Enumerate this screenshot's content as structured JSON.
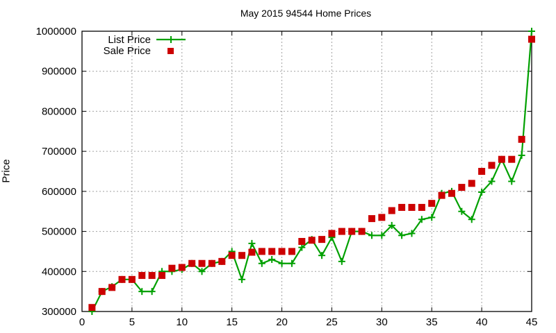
{
  "chart_data": {
    "type": "line",
    "title": "May 2015 94544 Home Prices",
    "xlabel": "",
    "ylabel": "Price",
    "xlim": [
      0,
      45
    ],
    "ylim": [
      300000,
      1000000
    ],
    "xticks": [
      0,
      5,
      10,
      15,
      20,
      25,
      30,
      35,
      40,
      45
    ],
    "yticks": [
      300000,
      400000,
      500000,
      600000,
      700000,
      800000,
      900000,
      1000000
    ],
    "grid": true,
    "legend_position": "top-left",
    "x": [
      1,
      2,
      3,
      4,
      5,
      6,
      7,
      8,
      9,
      10,
      11,
      12,
      13,
      14,
      15,
      16,
      17,
      18,
      19,
      20,
      21,
      22,
      23,
      24,
      25,
      26,
      27,
      28,
      29,
      30,
      31,
      32,
      33,
      34,
      35,
      36,
      37,
      38,
      39,
      40,
      41,
      42,
      43,
      44,
      45
    ],
    "series": [
      {
        "name": "List Price",
        "style": "linespoints",
        "marker": "plus",
        "color": "#00a000",
        "values": [
          300000,
          350000,
          362000,
          380000,
          380000,
          350000,
          350000,
          400000,
          400000,
          405000,
          420000,
          400000,
          420000,
          425000,
          450000,
          380000,
          470000,
          420000,
          430000,
          420000,
          420000,
          460000,
          480000,
          440000,
          485000,
          425000,
          500000,
          500000,
          490000,
          490000,
          515000,
          490000,
          495000,
          530000,
          535000,
          595000,
          600000,
          550000,
          530000,
          598000,
          625000,
          680000,
          625000,
          690000,
          1000000
        ]
      },
      {
        "name": "Sale Price",
        "style": "points",
        "marker": "square",
        "color": "#cc0000",
        "values": [
          310000,
          350000,
          360000,
          380000,
          380000,
          390000,
          390000,
          390000,
          408000,
          410000,
          420000,
          420000,
          420000,
          425000,
          440000,
          440000,
          448000,
          450000,
          450000,
          450000,
          450000,
          475000,
          478000,
          480000,
          495000,
          500000,
          500000,
          500000,
          532000,
          535000,
          552000,
          560000,
          560000,
          560000,
          570000,
          590000,
          595000,
          610000,
          620000,
          650000,
          665000,
          680000,
          680000,
          730000,
          980000
        ]
      }
    ]
  },
  "colors": {
    "grid": "#a0a0a0",
    "axis": "#000000"
  }
}
